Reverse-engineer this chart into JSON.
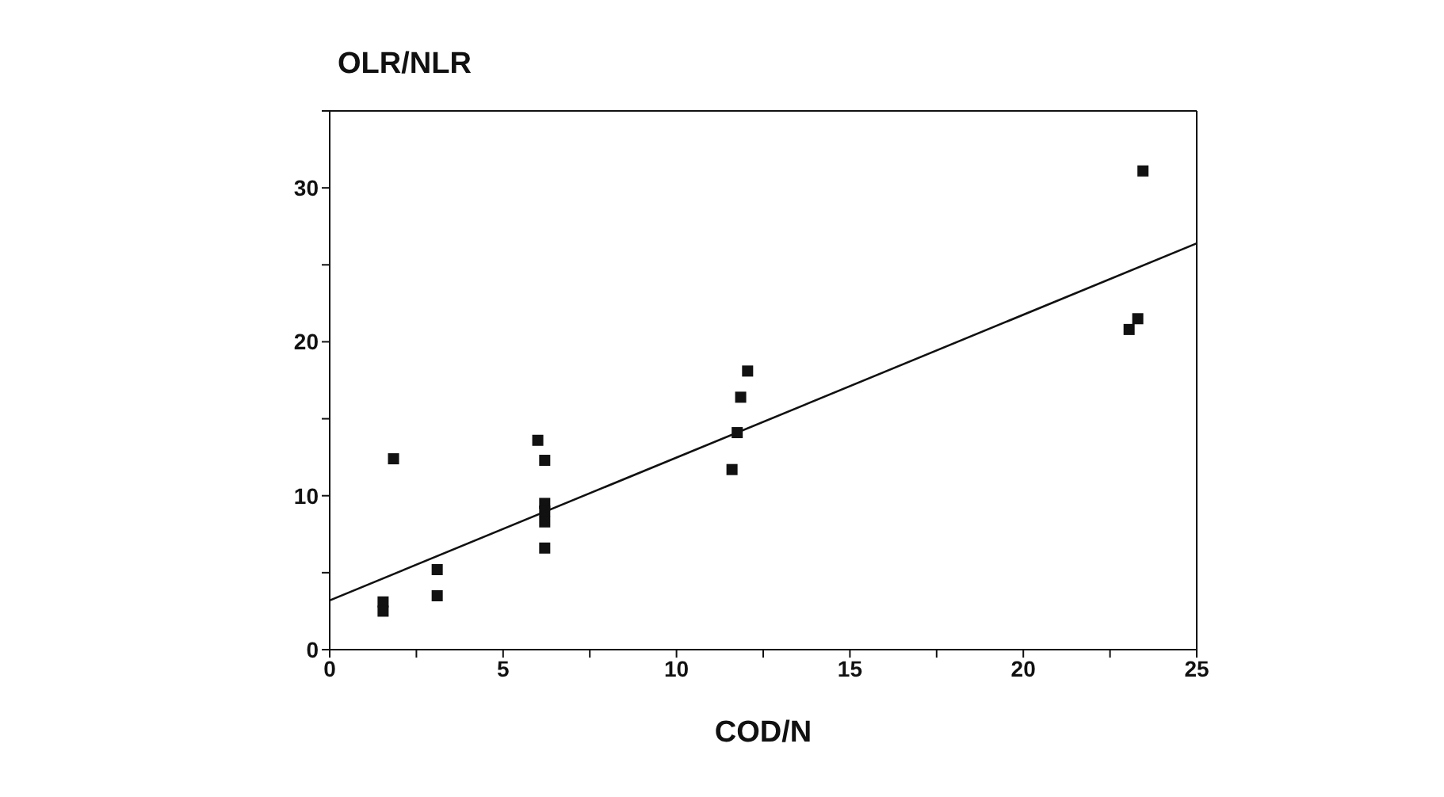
{
  "chart_data": {
    "type": "scatter",
    "xlabel": "COD/N",
    "ylabel": "OLR/NLR",
    "xlim": [
      0,
      25
    ],
    "ylim": [
      0,
      35
    ],
    "xticks": [
      0,
      {
        "value": 2.5,
        "label": null
      },
      5,
      {
        "value": 7.5,
        "label": null
      },
      10,
      {
        "value": 12.5,
        "label": null
      },
      15,
      {
        "value": 17.5,
        "label": null
      },
      20,
      {
        "value": 22.5,
        "label": null
      },
      25
    ],
    "yticks": [
      0,
      {
        "value": 5,
        "label": null
      },
      10,
      {
        "value": 15,
        "label": null
      },
      20,
      {
        "value": 25,
        "label": null
      },
      30,
      {
        "value": 35,
        "label": null
      }
    ],
    "series": [
      {
        "marker": "square",
        "color": "#111111",
        "x": [
          1.54,
          1.54,
          1.84,
          3.1,
          3.1,
          6.0,
          6.2,
          6.2,
          6.2,
          6.2,
          6.2,
          11.6,
          11.75,
          11.85,
          12.05,
          23.05,
          23.3,
          23.45
        ],
        "values": [
          3.1,
          2.5,
          12.4,
          5.2,
          3.5,
          13.6,
          12.3,
          9.5,
          9.0,
          8.3,
          6.6,
          11.7,
          14.1,
          16.4,
          18.1,
          20.8,
          21.5,
          31.1
        ]
      },
      {
        "type": "line",
        "color": "#111111",
        "x": [
          0,
          25
        ],
        "values": [
          3.2,
          26.4
        ]
      }
    ]
  }
}
